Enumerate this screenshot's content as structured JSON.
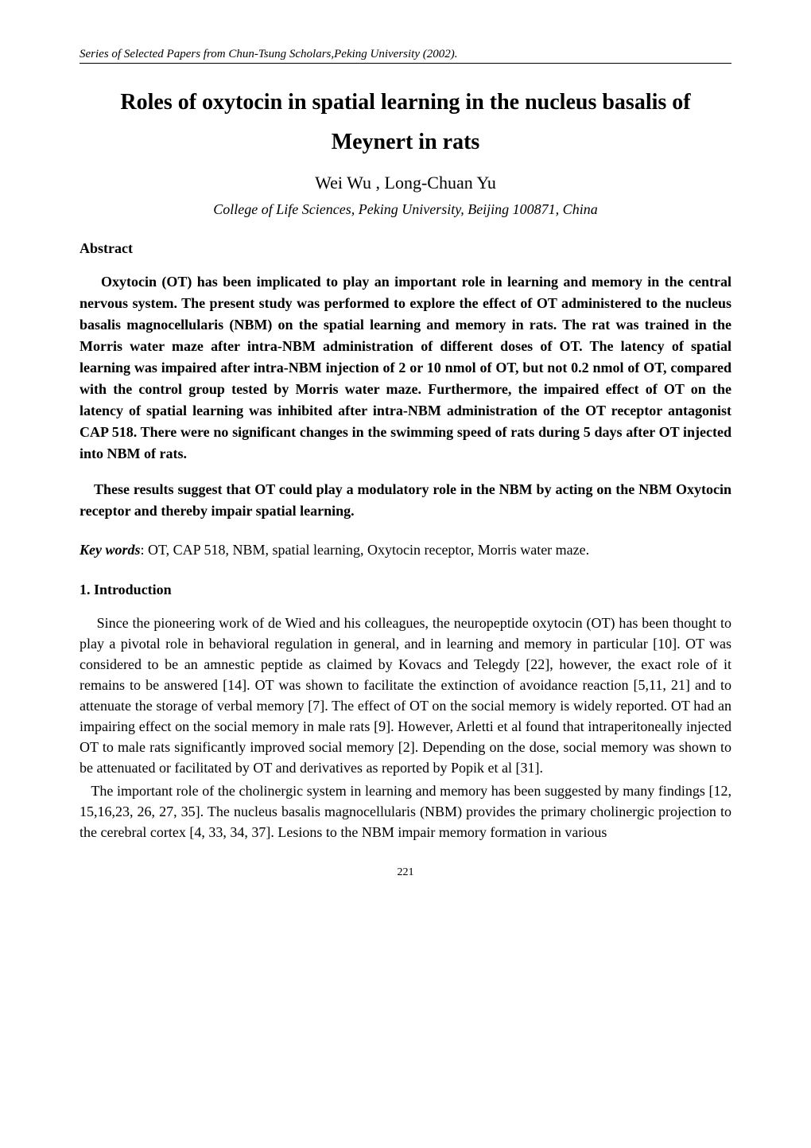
{
  "header": {
    "series_line": "Series of Selected Papers from Chun-Tsung Scholars,Peking University (2002)."
  },
  "title": "Roles of oxytocin in spatial learning in the nucleus basalis of Meynert in rats",
  "authors": "Wei Wu , Long-Chuan Yu",
  "affiliation": "College of Life Sciences, Peking University, Beijing 100871, China",
  "abstract": {
    "heading": "Abstract",
    "para1": "Oxytocin (OT) has been implicated to play an important role in learning and memory in the central nervous system. The present study was performed to explore the effect of OT administered to the nucleus basalis magnocellularis (NBM) on the spatial learning and memory in rats. The rat was trained in the Morris water maze after intra-NBM administration of different doses of OT. The latency of spatial learning was impaired after intra-NBM injection of 2 or 10 nmol of OT, but not 0.2 nmol of OT, compared with the control group tested by Morris water maze. Furthermore, the impaired effect of OT on the latency of spatial learning was inhibited after intra-NBM administration of the OT receptor antagonist CAP 518. There were no significant changes in the swimming speed of rats during 5 days after OT injected into NBM of rats.",
    "para2": "These results suggest that OT could play a modulatory role in the NBM by acting on the NBM Oxytocin receptor and thereby impair spatial learning."
  },
  "keywords": {
    "label": "Key words",
    "text": ": OT, CAP 518, NBM, spatial learning, Oxytocin receptor, Morris water maze."
  },
  "section1": {
    "heading": "1.   Introduction",
    "para1": "Since the pioneering work of de Wied and his colleagues, the neuropeptide oxytocin (OT) has been thought to play a pivotal role in behavioral regulation in general, and in learning and memory in particular [10]. OT was considered to be an amnestic peptide as claimed by Kovacs and Telegdy [22], however, the exact role of it remains to be answered [14]. OT was shown to facilitate the extinction of avoidance reaction [5,11, 21] and to attenuate the storage of verbal memory [7]. The effect of OT on the social memory is widely reported. OT had an impairing effect on the social memory in male rats [9]. However, Arletti et al found that intraperitoneally injected OT to male rats significantly improved social memory [2]. Depending on the dose, social memory was shown to be attenuated or facilitated by OT and derivatives as reported by Popik et al [31].",
    "para2": "The important role of the cholinergic system in learning and memory has been suggested by many findings [12, 15,16,23, 26, 27, 35]. The nucleus basalis magnocellularis (NBM) provides the primary cholinergic projection to the cerebral cortex [4, 33, 34, 37]. Lesions to the NBM impair memory formation in various"
  },
  "page_number": "221",
  "colors": {
    "text": "#000000",
    "background": "#ffffff",
    "rule": "#000000"
  },
  "typography": {
    "base_font": "Times New Roman",
    "title_size_pt": 21,
    "authors_size_pt": 16,
    "affiliation_size_pt": 13,
    "body_size_pt": 13,
    "header_size_pt": 11,
    "page_number_size_pt": 10
  }
}
